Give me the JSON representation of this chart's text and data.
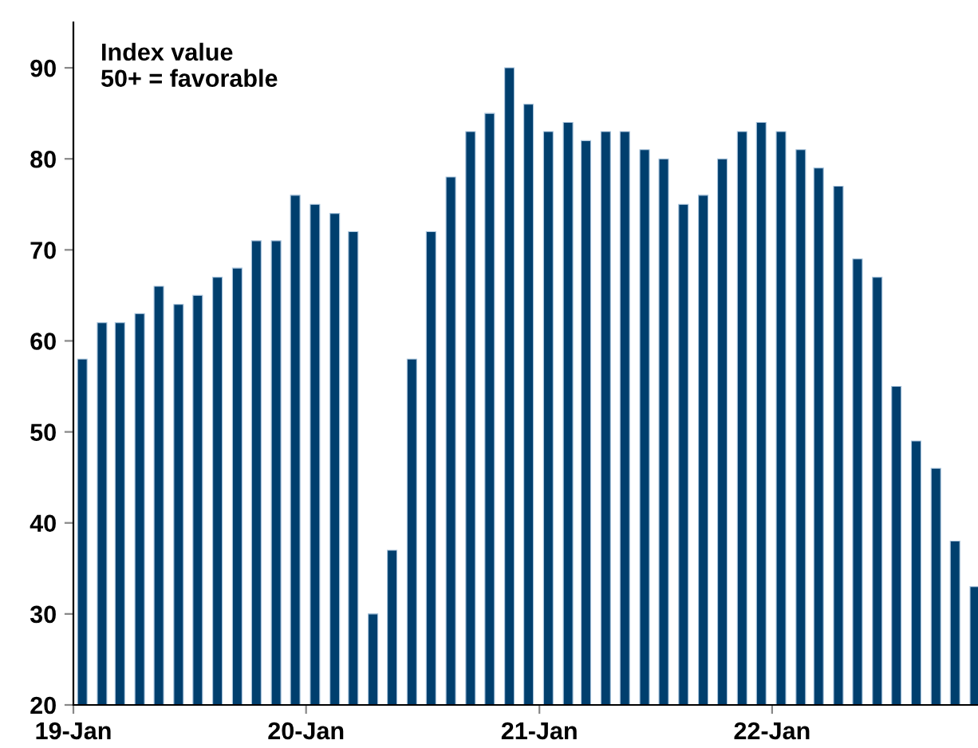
{
  "chart_data": {
    "type": "bar",
    "color": "#003f6e",
    "x": [
      "2019-01-15",
      "2019-02-15",
      "2019-03-15",
      "2019-04-15",
      "2019-05-15",
      "2019-06-15",
      "2019-07-15",
      "2019-08-15",
      "2019-09-15",
      "2019-10-15",
      "2019-11-15",
      "2019-12-15",
      "2020-01-15",
      "2020-02-15",
      "2020-03-15",
      "2020-04-15",
      "2020-05-15",
      "2020-06-15",
      "2020-07-15",
      "2020-08-15",
      "2020-09-15",
      "2020-10-15",
      "2020-11-15",
      "2020-12-15",
      "2021-01-15",
      "2021-02-15",
      "2021-03-15",
      "2021-04-15",
      "2021-05-15",
      "2021-06-15",
      "2021-07-15",
      "2021-08-15",
      "2021-09-15",
      "2021-10-15",
      "2021-11-15",
      "2021-12-15",
      "2022-01-15",
      "2022-02-15",
      "2022-03-15",
      "2022-04-15",
      "2022-05-15",
      "2022-06-15",
      "2022-07-15",
      "2022-08-15",
      "2022-09-15",
      "2022-10-15",
      "2022-11-15"
    ],
    "values": [
      58,
      62,
      62,
      63,
      66,
      64,
      65,
      67,
      68,
      71,
      71,
      76,
      75,
      74,
      72,
      30,
      37,
      58,
      72,
      78,
      83,
      85,
      90,
      86,
      83,
      84,
      82,
      83,
      83,
      81,
      80,
      75,
      76,
      80,
      83,
      84,
      83,
      81,
      79,
      77,
      69,
      67,
      55,
      49,
      46,
      38,
      33
    ],
    "annotations": [
      "Index value\n50+ = favorable"
    ],
    "ylim": [
      20,
      95
    ],
    "yticks": [
      20,
      30,
      40,
      50,
      60,
      70,
      80,
      90
    ],
    "xlim": [
      "2019-01",
      "2022-11-20"
    ],
    "xticks": [
      {
        "value": "2019-01",
        "label": "19-Jan"
      },
      {
        "value": "2020-01",
        "label": "20-Jan"
      },
      {
        "value": "2021-01",
        "label": "21-Jan"
      },
      {
        "value": "2022-01",
        "label": "22-Jan"
      }
    ],
    "grid": false,
    "legend": false
  }
}
